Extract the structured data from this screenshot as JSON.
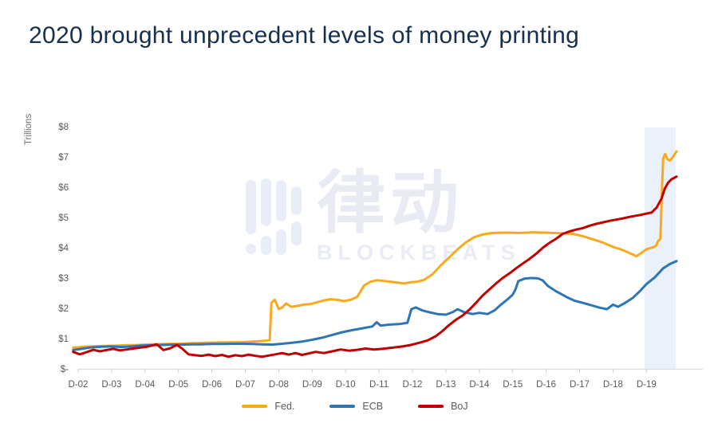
{
  "header": {
    "title": "2020 brought unprecedent levels of money printing"
  },
  "watermark": {
    "cjk": "律动",
    "latin": "BLOCKBEATS"
  },
  "chart_data": {
    "type": "line",
    "title": "2020 brought unprecedent levels of money printing",
    "xlabel": "",
    "ylabel": "Trillions",
    "x_unit": "year-end index, 0 = D-02 (Dec 2002) through 17 = D-19 (Dec 2019), data extends to ~late 2020",
    "x_tick_labels": [
      "D-02",
      "D-03",
      "D-04",
      "D-05",
      "D-06",
      "D-07",
      "D-08",
      "D-09",
      "D-10",
      "D-11",
      "D-12",
      "D-13",
      "D-14",
      "D-15",
      "D-16",
      "D-17",
      "D-18",
      "D-19"
    ],
    "y_tick_labels": [
      "$-",
      "$1",
      "$2",
      "$3",
      "$4",
      "$5",
      "$6",
      "$7",
      "$8"
    ],
    "ylim": [
      0,
      8
    ],
    "xlim": [
      -0.15,
      17.9
    ],
    "grid": false,
    "legend_position": "bottom-center",
    "highlight_band": {
      "x_start": 16.95,
      "x_end": 17.88,
      "color": "#EBF1FB"
    },
    "axis_color": "#D9D9D9",
    "tick_color": "#C9C9C9",
    "series": [
      {
        "name": "Fed.",
        "color": "#F8A91E",
        "points": [
          [
            -0.15,
            0.7
          ],
          [
            0.2,
            0.73
          ],
          [
            0.6,
            0.75
          ],
          [
            1.0,
            0.76
          ],
          [
            1.4,
            0.78
          ],
          [
            1.8,
            0.79
          ],
          [
            2.2,
            0.81
          ],
          [
            2.6,
            0.82
          ],
          [
            3.0,
            0.83
          ],
          [
            3.4,
            0.85
          ],
          [
            3.8,
            0.86
          ],
          [
            4.2,
            0.87
          ],
          [
            4.6,
            0.88
          ],
          [
            5.0,
            0.89
          ],
          [
            5.35,
            0.91
          ],
          [
            5.6,
            0.93
          ],
          [
            5.73,
            0.95
          ],
          [
            5.78,
            2.18
          ],
          [
            5.88,
            2.28
          ],
          [
            6.0,
            1.98
          ],
          [
            6.1,
            2.02
          ],
          [
            6.22,
            2.16
          ],
          [
            6.38,
            2.05
          ],
          [
            6.55,
            2.08
          ],
          [
            6.75,
            2.12
          ],
          [
            6.95,
            2.14
          ],
          [
            7.15,
            2.2
          ],
          [
            7.35,
            2.26
          ],
          [
            7.55,
            2.3
          ],
          [
            7.75,
            2.28
          ],
          [
            7.95,
            2.24
          ],
          [
            8.15,
            2.28
          ],
          [
            8.35,
            2.38
          ],
          [
            8.55,
            2.75
          ],
          [
            8.75,
            2.88
          ],
          [
            8.95,
            2.93
          ],
          [
            9.15,
            2.9
          ],
          [
            9.35,
            2.88
          ],
          [
            9.55,
            2.85
          ],
          [
            9.75,
            2.82
          ],
          [
            9.95,
            2.86
          ],
          [
            10.15,
            2.88
          ],
          [
            10.35,
            2.94
          ],
          [
            10.6,
            3.12
          ],
          [
            10.85,
            3.42
          ],
          [
            11.1,
            3.68
          ],
          [
            11.35,
            3.95
          ],
          [
            11.6,
            4.18
          ],
          [
            11.85,
            4.35
          ],
          [
            12.1,
            4.44
          ],
          [
            12.4,
            4.49
          ],
          [
            12.8,
            4.5
          ],
          [
            13.2,
            4.49
          ],
          [
            13.6,
            4.51
          ],
          [
            14.0,
            4.5
          ],
          [
            14.4,
            4.48
          ],
          [
            14.8,
            4.46
          ],
          [
            15.1,
            4.38
          ],
          [
            15.4,
            4.28
          ],
          [
            15.7,
            4.17
          ],
          [
            16.0,
            4.03
          ],
          [
            16.3,
            3.92
          ],
          [
            16.55,
            3.8
          ],
          [
            16.7,
            3.72
          ],
          [
            16.85,
            3.83
          ],
          [
            17.0,
            3.95
          ],
          [
            17.15,
            4.0
          ],
          [
            17.28,
            4.05
          ],
          [
            17.35,
            4.22
          ],
          [
            17.42,
            4.3
          ],
          [
            17.46,
            5.8
          ],
          [
            17.5,
            6.95
          ],
          [
            17.56,
            7.1
          ],
          [
            17.63,
            6.92
          ],
          [
            17.7,
            6.88
          ],
          [
            17.78,
            6.98
          ],
          [
            17.9,
            7.18
          ]
        ]
      },
      {
        "name": "ECB",
        "color": "#2E75B6",
        "points": [
          [
            -0.15,
            0.62
          ],
          [
            0.1,
            0.66
          ],
          [
            0.4,
            0.71
          ],
          [
            0.7,
            0.73
          ],
          [
            1.0,
            0.74
          ],
          [
            1.3,
            0.72
          ],
          [
            1.6,
            0.74
          ],
          [
            1.9,
            0.77
          ],
          [
            2.2,
            0.78
          ],
          [
            2.5,
            0.79
          ],
          [
            2.8,
            0.8
          ],
          [
            3.1,
            0.8
          ],
          [
            3.4,
            0.81
          ],
          [
            3.7,
            0.81
          ],
          [
            4.0,
            0.82
          ],
          [
            4.3,
            0.82
          ],
          [
            4.6,
            0.83
          ],
          [
            4.9,
            0.83
          ],
          [
            5.2,
            0.82
          ],
          [
            5.5,
            0.81
          ],
          [
            5.8,
            0.8
          ],
          [
            6.1,
            0.83
          ],
          [
            6.4,
            0.86
          ],
          [
            6.7,
            0.9
          ],
          [
            7.0,
            0.96
          ],
          [
            7.3,
            1.03
          ],
          [
            7.6,
            1.12
          ],
          [
            7.9,
            1.21
          ],
          [
            8.2,
            1.28
          ],
          [
            8.5,
            1.34
          ],
          [
            8.8,
            1.4
          ],
          [
            8.93,
            1.54
          ],
          [
            9.05,
            1.43
          ],
          [
            9.3,
            1.46
          ],
          [
            9.6,
            1.48
          ],
          [
            9.85,
            1.52
          ],
          [
            9.97,
            1.97
          ],
          [
            10.1,
            2.03
          ],
          [
            10.3,
            1.93
          ],
          [
            10.5,
            1.87
          ],
          [
            10.75,
            1.81
          ],
          [
            11.0,
            1.79
          ],
          [
            11.2,
            1.87
          ],
          [
            11.35,
            1.97
          ],
          [
            11.55,
            1.87
          ],
          [
            11.8,
            1.81
          ],
          [
            12.0,
            1.85
          ],
          [
            12.25,
            1.81
          ],
          [
            12.45,
            1.93
          ],
          [
            12.65,
            2.12
          ],
          [
            12.85,
            2.3
          ],
          [
            13.0,
            2.45
          ],
          [
            13.08,
            2.62
          ],
          [
            13.17,
            2.9
          ],
          [
            13.35,
            2.98
          ],
          [
            13.55,
            3.0
          ],
          [
            13.75,
            2.99
          ],
          [
            13.9,
            2.92
          ],
          [
            14.05,
            2.74
          ],
          [
            14.3,
            2.56
          ],
          [
            14.6,
            2.38
          ],
          [
            14.85,
            2.25
          ],
          [
            15.1,
            2.18
          ],
          [
            15.35,
            2.1
          ],
          [
            15.6,
            2.02
          ],
          [
            15.82,
            1.97
          ],
          [
            16.0,
            2.12
          ],
          [
            16.15,
            2.05
          ],
          [
            16.35,
            2.17
          ],
          [
            16.6,
            2.35
          ],
          [
            16.8,
            2.56
          ],
          [
            17.0,
            2.8
          ],
          [
            17.25,
            3.02
          ],
          [
            17.5,
            3.32
          ],
          [
            17.7,
            3.46
          ],
          [
            17.9,
            3.56
          ]
        ]
      },
      {
        "name": "BoJ",
        "color": "#C00000",
        "points": [
          [
            -0.15,
            0.56
          ],
          [
            0.05,
            0.48
          ],
          [
            0.25,
            0.55
          ],
          [
            0.45,
            0.63
          ],
          [
            0.65,
            0.58
          ],
          [
            0.85,
            0.62
          ],
          [
            1.05,
            0.66
          ],
          [
            1.25,
            0.61
          ],
          [
            1.45,
            0.64
          ],
          [
            1.65,
            0.67
          ],
          [
            1.85,
            0.7
          ],
          [
            2.05,
            0.73
          ],
          [
            2.35,
            0.81
          ],
          [
            2.55,
            0.62
          ],
          [
            2.75,
            0.68
          ],
          [
            2.95,
            0.79
          ],
          [
            3.1,
            0.68
          ],
          [
            3.3,
            0.48
          ],
          [
            3.5,
            0.45
          ],
          [
            3.7,
            0.43
          ],
          [
            3.9,
            0.47
          ],
          [
            4.1,
            0.42
          ],
          [
            4.3,
            0.46
          ],
          [
            4.5,
            0.4
          ],
          [
            4.7,
            0.45
          ],
          [
            4.9,
            0.42
          ],
          [
            5.1,
            0.47
          ],
          [
            5.3,
            0.43
          ],
          [
            5.5,
            0.4
          ],
          [
            5.7,
            0.44
          ],
          [
            5.9,
            0.48
          ],
          [
            6.1,
            0.52
          ],
          [
            6.3,
            0.47
          ],
          [
            6.5,
            0.52
          ],
          [
            6.7,
            0.46
          ],
          [
            6.9,
            0.51
          ],
          [
            7.1,
            0.56
          ],
          [
            7.35,
            0.52
          ],
          [
            7.6,
            0.58
          ],
          [
            7.85,
            0.64
          ],
          [
            8.1,
            0.6
          ],
          [
            8.35,
            0.63
          ],
          [
            8.6,
            0.67
          ],
          [
            8.85,
            0.64
          ],
          [
            9.1,
            0.66
          ],
          [
            9.4,
            0.7
          ],
          [
            9.7,
            0.74
          ],
          [
            9.95,
            0.79
          ],
          [
            10.2,
            0.86
          ],
          [
            10.45,
            0.94
          ],
          [
            10.7,
            1.08
          ],
          [
            10.9,
            1.25
          ],
          [
            11.1,
            1.45
          ],
          [
            11.3,
            1.62
          ],
          [
            11.5,
            1.76
          ],
          [
            11.7,
            1.95
          ],
          [
            11.9,
            2.18
          ],
          [
            12.1,
            2.42
          ],
          [
            12.3,
            2.62
          ],
          [
            12.5,
            2.82
          ],
          [
            12.7,
            3.0
          ],
          [
            12.9,
            3.15
          ],
          [
            13.1,
            3.32
          ],
          [
            13.3,
            3.48
          ],
          [
            13.5,
            3.63
          ],
          [
            13.7,
            3.8
          ],
          [
            13.9,
            4.0
          ],
          [
            14.1,
            4.16
          ],
          [
            14.3,
            4.3
          ],
          [
            14.5,
            4.46
          ],
          [
            14.7,
            4.54
          ],
          [
            14.9,
            4.6
          ],
          [
            15.1,
            4.65
          ],
          [
            15.3,
            4.73
          ],
          [
            15.5,
            4.79
          ],
          [
            15.7,
            4.84
          ],
          [
            15.9,
            4.89
          ],
          [
            16.1,
            4.93
          ],
          [
            16.3,
            4.97
          ],
          [
            16.5,
            5.02
          ],
          [
            16.7,
            5.06
          ],
          [
            16.85,
            5.09
          ],
          [
            17.0,
            5.13
          ],
          [
            17.15,
            5.16
          ],
          [
            17.3,
            5.32
          ],
          [
            17.45,
            5.62
          ],
          [
            17.55,
            5.95
          ],
          [
            17.65,
            6.15
          ],
          [
            17.75,
            6.26
          ],
          [
            17.85,
            6.32
          ],
          [
            17.9,
            6.35
          ]
        ]
      }
    ]
  }
}
